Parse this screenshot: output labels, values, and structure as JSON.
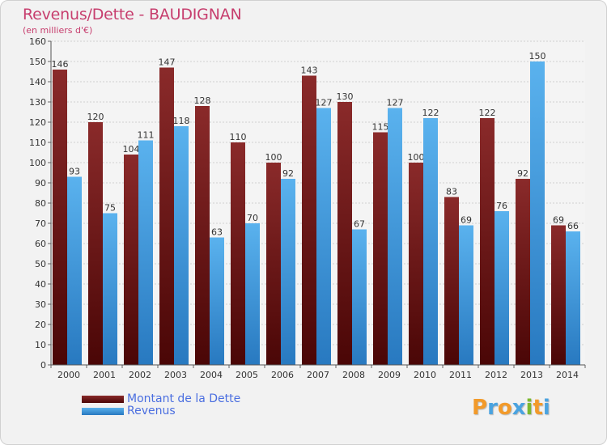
{
  "chart_data": {
    "type": "bar",
    "title": "Revenus/Dette - BAUDIGNAN",
    "subtitle": "(en milliers d'€)",
    "categories": [
      "2000",
      "2001",
      "2002",
      "2003",
      "2004",
      "2005",
      "2006",
      "2007",
      "2008",
      "2009",
      "2010",
      "2011",
      "2012",
      "2013",
      "2014"
    ],
    "series": [
      {
        "name": "Montant de la Dette",
        "color": "#8b2020",
        "values": [
          146,
          120,
          104,
          147,
          128,
          110,
          100,
          143,
          130,
          115,
          100,
          83,
          122,
          92,
          69
        ]
      },
      {
        "name": "Revenus",
        "color": "#4aa3e0",
        "values": [
          93,
          75,
          111,
          118,
          63,
          70,
          92,
          127,
          67,
          127,
          122,
          69,
          76,
          150,
          66
        ]
      }
    ],
    "yticks": [
      0,
      10,
      20,
      30,
      40,
      50,
      60,
      70,
      80,
      90,
      100,
      110,
      120,
      130,
      140,
      150,
      160
    ],
    "ylim": [
      0,
      160
    ],
    "grid": true,
    "legend": "bottom-left"
  },
  "branding": {
    "letters": [
      "P",
      "r",
      "o",
      "x",
      "i",
      "t",
      "i"
    ],
    "colors": [
      "#f29a2a",
      "#4aa3e0",
      "#f29a2a",
      "#4aa3e0",
      "#7cb82f",
      "#f29a2a",
      "#4aa3e0"
    ]
  }
}
